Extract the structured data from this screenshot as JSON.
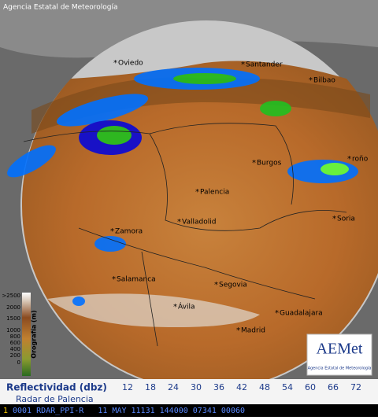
{
  "header": {
    "agency": "Agencia Estatal de Meteorología"
  },
  "cities": [
    "Oviedo",
    "Santander",
    "Bilbao",
    "Burgos",
    "roño",
    "Palencia",
    "Valladolid",
    "Zamora",
    "Soria",
    "Salamanca",
    "Segovia",
    "Ávila",
    "Guadalajara",
    "Madrid"
  ],
  "orography": {
    "title": "Orografía (m)",
    "ticks": [
      {
        "value": 2500,
        "label": ">2500"
      },
      2000,
      1500,
      1000,
      800,
      600,
      400,
      200,
      0
    ]
  },
  "logo": {
    "name": "AEMet",
    "subtitle": "Agencia Estatal de Meteorología"
  },
  "legend": {
    "title": "Reflectividad (dbz)",
    "radar": "Radar de Palencia",
    "levels": [
      {
        "value": 12,
        "color": "#0808d8"
      },
      {
        "value": 18,
        "color": "#0070ff"
      },
      {
        "value": 24,
        "color": "#00e8ff"
      },
      {
        "value": 30,
        "color": "#1a8a1a"
      },
      {
        "value": 36,
        "color": "#20c020"
      },
      {
        "value": 42,
        "color": "#60ff40"
      },
      {
        "value": 48,
        "color": "#ffff00"
      },
      {
        "value": 54,
        "color": "#ffc000"
      },
      {
        "value": 60,
        "color": "#ff7000"
      },
      {
        "value": 66,
        "color": "#ff0000"
      },
      {
        "value": 72,
        "color": "#c00070"
      }
    ]
  },
  "status": {
    "flag": "1",
    "text": "0001 RDAR_PPI-R   11 MAY 11131 144000 07341 00060"
  }
}
